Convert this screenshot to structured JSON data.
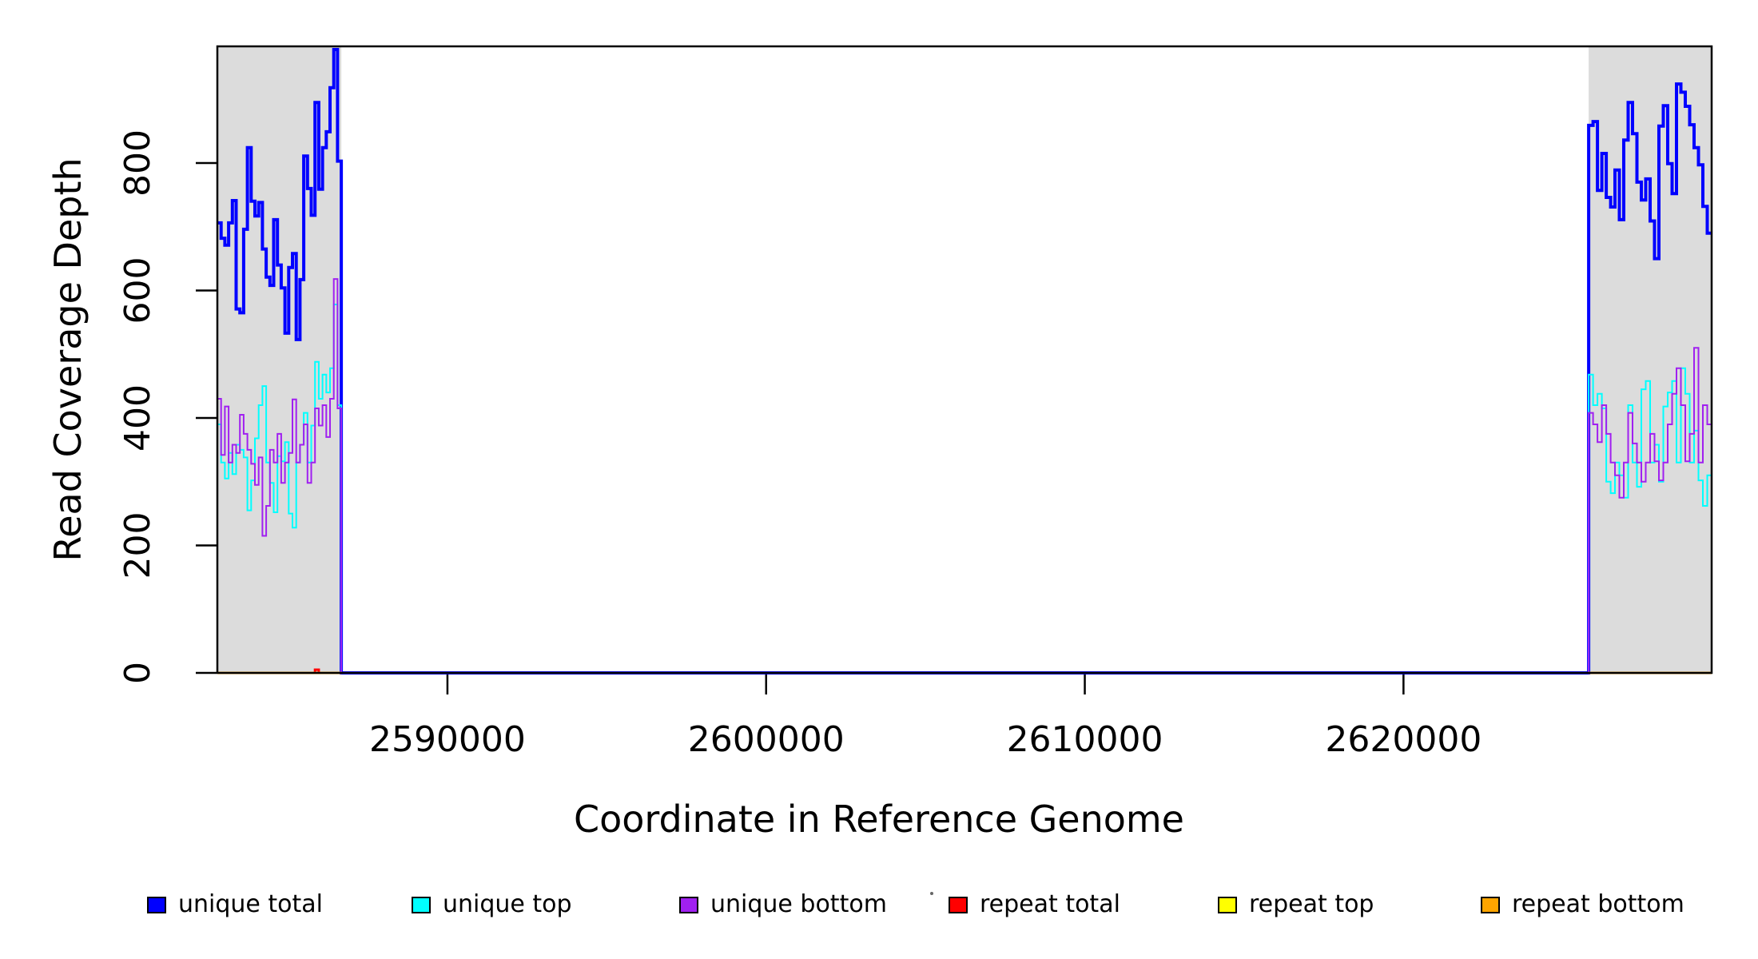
{
  "chart_data": {
    "type": "line",
    "subtype": "step-coverage-plot",
    "title": "",
    "xlabel": "Coordinate in Reference Genome",
    "ylabel": "Read Coverage Depth",
    "xlim": [
      2582780,
      2629670
    ],
    "ylim": [
      0,
      983
    ],
    "x_ticks": [
      2590000,
      2600000,
      2610000,
      2620000
    ],
    "y_ticks": [
      0,
      200,
      400,
      600,
      800
    ],
    "grid": false,
    "legend_position": "bottom",
    "background_color": "#ffffff",
    "shaded_region_color": "#dcdcdc",
    "shaded_regions": [
      {
        "x0": 2582780,
        "x1": 2586670,
        "meaning": "repeat region (left)"
      },
      {
        "x0": 2625810,
        "x1": 2629670,
        "meaning": "repeat region (right)"
      }
    ],
    "series": [
      {
        "label": "unique total",
        "color": "#0000ff",
        "line_width": 4,
        "segments": [
          {
            "x0": 2582780,
            "x1": 2586670,
            "values": [
              706,
              682,
              671,
              706,
              741,
              571,
              565,
              696,
              824,
              740,
              717,
              738,
              665,
              621,
              608,
              711,
              640,
              604,
              533,
              636,
              658,
              523,
              617,
              811,
              760,
              718,
              895,
              759,
              824,
              849,
              918,
              978,
              803
            ]
          },
          {
            "x0": 2586670,
            "x1": 2625810,
            "values": [
              0
            ]
          },
          {
            "x0": 2625810,
            "x1": 2629670,
            "values": [
              859,
              865,
              757,
              815,
              746,
              731,
              789,
              711,
              836,
              895,
              846,
              770,
              742,
              775,
              709,
              650,
              858,
              890,
              799,
              752,
              924,
              911,
              889,
              860,
              824,
              797,
              732,
              690
            ]
          }
        ]
      },
      {
        "label": "unique top",
        "color": "#00ffff",
        "line_width": 2,
        "segments": [
          {
            "x0": 2582780,
            "x1": 2586670,
            "values": [
              390,
              330,
              305,
              345,
              312,
              358,
              350,
              338,
              255,
              302,
              368,
              420,
              450,
              330,
              298,
              252,
              340,
              332,
              362,
              250,
              228,
              330,
              358,
              408,
              330,
              388,
              488,
              430,
              468,
              440,
              478,
              578,
              420
            ]
          },
          {
            "x0": 2586670,
            "x1": 2625810,
            "values": [
              0
            ]
          },
          {
            "x0": 2625810,
            "x1": 2629670,
            "values": [
              468,
              420,
              438,
              415,
              300,
              282,
              330,
              310,
              275,
              420,
              330,
              292,
              445,
              458,
              330,
              358,
              300,
              418,
              440,
              458,
              330,
              478,
              438,
              330,
              380,
              302,
              262,
              310
            ]
          }
        ]
      },
      {
        "label": "unique bottom",
        "color": "#a020f0",
        "line_width": 2,
        "segments": [
          {
            "x0": 2582780,
            "x1": 2586670,
            "values": [
              430,
              342,
              418,
              330,
              358,
              345,
              405,
              375,
              350,
              328,
              295,
              338,
              215,
              262,
              350,
              330,
              375,
              298,
              330,
              345,
              429,
              330,
              358,
              390,
              298,
              330,
              415,
              388,
              420,
              370,
              430,
              618,
              415
            ]
          },
          {
            "x0": 2586670,
            "x1": 2625810,
            "values": [
              0
            ]
          },
          {
            "x0": 2625810,
            "x1": 2629670,
            "values": [
              408,
              390,
              362,
              420,
              375,
              330,
              310,
              275,
              330,
              408,
              360,
              330,
              300,
              330,
              375,
              332,
              302,
              330,
              390,
              438,
              478,
              420,
              332,
              375,
              510,
              330,
              420,
              390
            ]
          }
        ]
      },
      {
        "label": "repeat total",
        "color": "#ff0000",
        "line_width": 3,
        "segments": [
          {
            "x0": 2582780,
            "x1": 2586670,
            "values": [
              0,
              0,
              0,
              0,
              0,
              0,
              0,
              0,
              0,
              0,
              0,
              0,
              0,
              0,
              0,
              0,
              0,
              0,
              0,
              0,
              0,
              0,
              0,
              0,
              0,
              0,
              5,
              0,
              0,
              0,
              0,
              0,
              0
            ]
          },
          {
            "x0": 2625810,
            "x1": 2629670,
            "values": [
              0
            ]
          }
        ]
      },
      {
        "label": "repeat top",
        "color": "#ffff00",
        "line_width": 3,
        "segments": [
          {
            "x0": 2582780,
            "x1": 2586670,
            "values": [
              0
            ]
          },
          {
            "x0": 2625810,
            "x1": 2629670,
            "values": [
              0
            ]
          }
        ]
      },
      {
        "label": "repeat bottom",
        "color": "#ffa500",
        "line_width": 3,
        "segments": [
          {
            "x0": 2582780,
            "x1": 2586670,
            "values": [
              0
            ]
          },
          {
            "x0": 2625810,
            "x1": 2629670,
            "values": [
              0
            ]
          }
        ]
      }
    ]
  }
}
